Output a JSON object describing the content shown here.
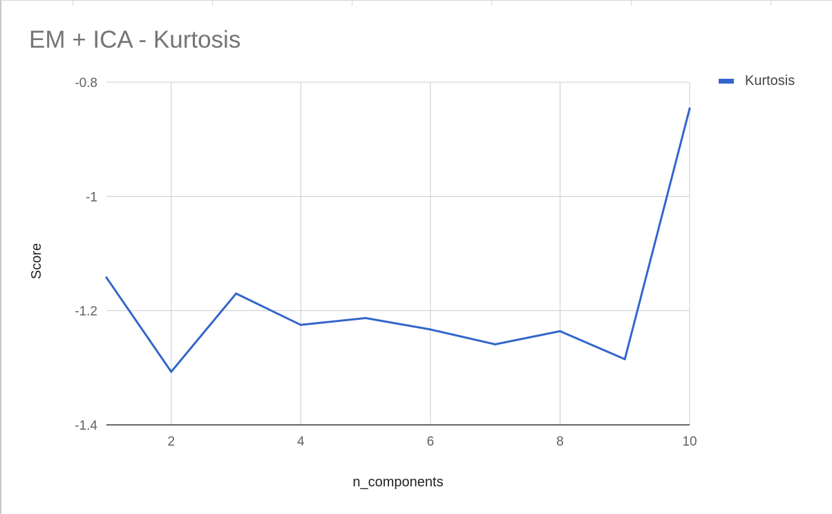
{
  "chart_data": {
    "type": "line",
    "title": "EM + ICA - Kurtosis",
    "xlabel": "n_components",
    "ylabel": "Score",
    "x": [
      1,
      2,
      3,
      4,
      5,
      6,
      7,
      8,
      9,
      10
    ],
    "series": [
      {
        "name": "Kurtosis",
        "color": "#3366cc",
        "values": [
          -1.142,
          -1.307,
          -1.17,
          -1.225,
          -1.213,
          -1.233,
          -1.259,
          -1.236,
          -1.285,
          -0.846
        ]
      }
    ],
    "xlim": [
      1,
      10
    ],
    "ylim": [
      -1.4,
      -0.8
    ],
    "xticks": [
      2,
      4,
      6,
      8,
      10
    ],
    "xtick_labels": [
      "2",
      "4",
      "6",
      "8",
      "10"
    ],
    "yticks": [
      -1.4,
      -1.2,
      -1,
      -0.8
    ],
    "ytick_labels": [
      "-1.4",
      "-1.2",
      "-1",
      "-0.8"
    ],
    "grid": true,
    "legend_position": "right"
  }
}
